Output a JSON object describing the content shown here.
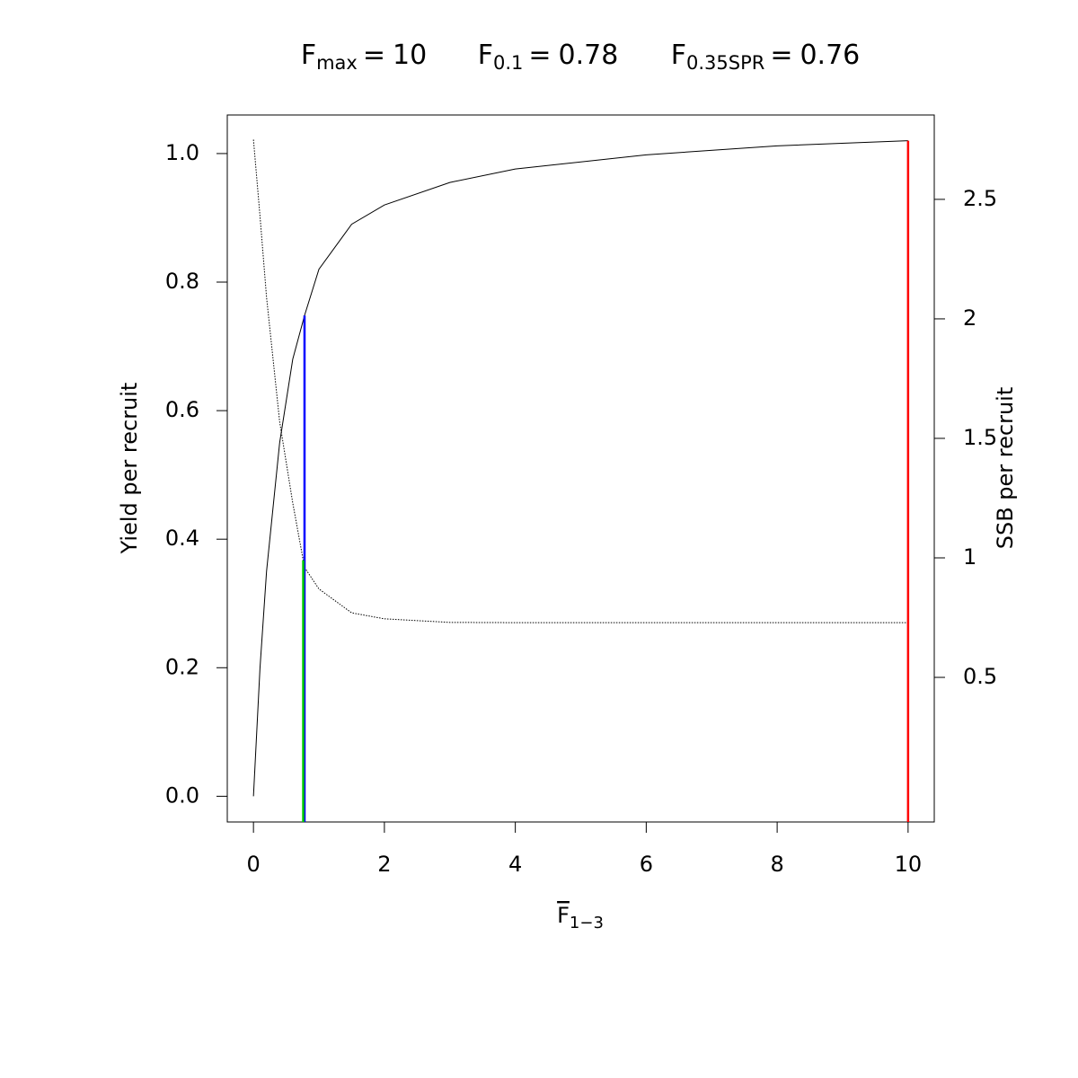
{
  "chart_data": {
    "type": "line",
    "title_items": [
      {
        "symbol": "F",
        "subscript": "max",
        "sign": "=",
        "value": 10,
        "color": "#ff0000",
        "curve": 0
      },
      {
        "symbol": "F",
        "subscript": "0.1",
        "sign": "=",
        "value": 0.78,
        "color": "#0000ff",
        "curve": 0
      },
      {
        "symbol": "F",
        "subscript": "0.35SPR",
        "sign": "=",
        "value": 0.76,
        "color": "#00cc00",
        "curve": 1
      }
    ],
    "xlabel": {
      "symbol": "F",
      "overline": true,
      "subscript": "1−3"
    },
    "ylabel": "Yield per recruit",
    "y2label": "SSB per recruit",
    "x": [
      0,
      0.1,
      0.2,
      0.4,
      0.6,
      0.78,
      1,
      1.5,
      2,
      3,
      4,
      6,
      8,
      10
    ],
    "series": [
      {
        "axis": "y",
        "color": "#000000",
        "dash": "solid",
        "values": [
          0,
          0.2,
          0.35,
          0.55,
          0.68,
          0.748,
          0.82,
          0.89,
          0.92,
          0.955,
          0.976,
          0.998,
          1.012,
          1.02
        ]
      },
      {
        "axis": "y2",
        "color": "#000000",
        "dash": "dotted",
        "values": [
          2.75,
          2.43,
          2.09,
          1.57,
          1.23,
          0.96,
          0.87,
          0.77,
          0.745,
          0.73,
          0.729,
          0.729,
          0.729,
          0.729
        ]
      }
    ],
    "xlim": [
      -0.4,
      10.4
    ],
    "xticks": [
      0,
      2,
      4,
      6,
      8,
      10
    ],
    "ylim": [
      -0.04,
      1.06
    ],
    "yticks": [
      {
        "value": 0,
        "label": "0.0"
      },
      {
        "value": 0.2,
        "label": "0.2"
      },
      {
        "value": 0.4,
        "label": "0.4"
      },
      {
        "value": 0.6,
        "label": "0.6"
      },
      {
        "value": 0.8,
        "label": "0.8"
      },
      {
        "value": 1,
        "label": "1.0"
      }
    ],
    "y2lim": [
      -0.105,
      2.853
    ],
    "y2ticks": [
      0.5,
      1,
      1.5,
      2,
      2.5
    ]
  }
}
